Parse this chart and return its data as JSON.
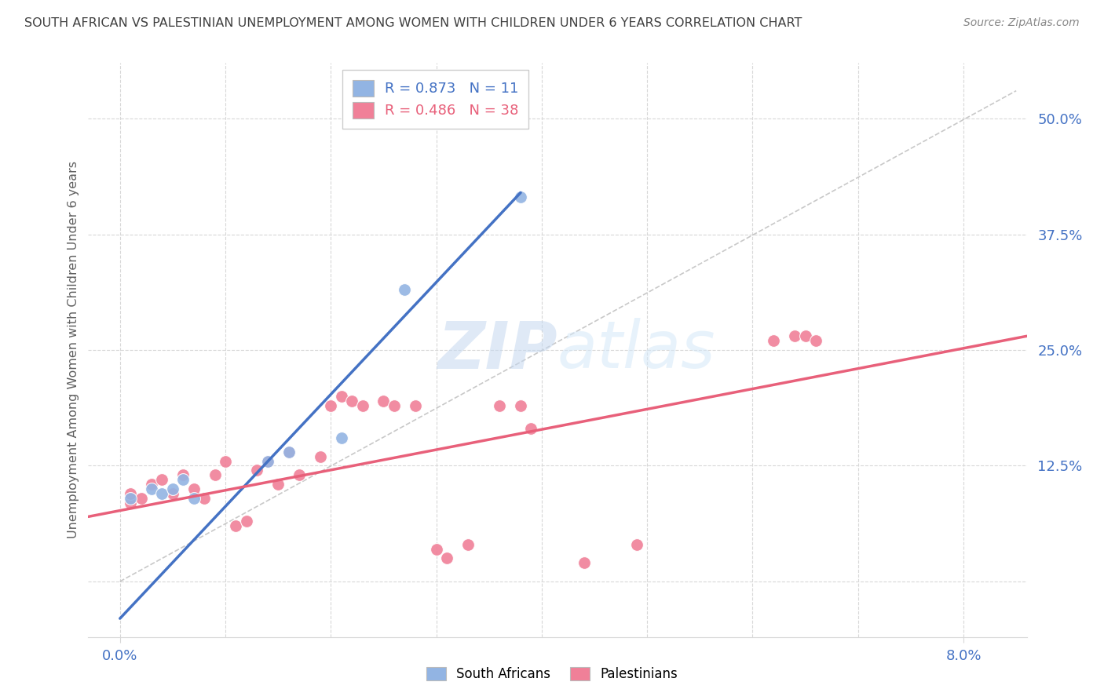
{
  "title": "SOUTH AFRICAN VS PALESTINIAN UNEMPLOYMENT AMONG WOMEN WITH CHILDREN UNDER 6 YEARS CORRELATION CHART",
  "source": "Source: ZipAtlas.com",
  "ylabel": "Unemployment Among Women with Children Under 6 years",
  "y_ticks": [
    0.0,
    0.125,
    0.25,
    0.375,
    0.5
  ],
  "y_tick_labels": [
    "",
    "12.5%",
    "25.0%",
    "37.5%",
    "50.0%"
  ],
  "y_min": -0.06,
  "y_max": 0.56,
  "x_min": -0.003,
  "x_max": 0.086,
  "sa_color": "#92b4e3",
  "pal_color": "#f08098",
  "sa_line_color": "#4472c4",
  "pal_line_color": "#e8607a",
  "ref_line_color": "#bbbbbb",
  "grid_color": "#d8d8d8",
  "sa_R": 0.873,
  "sa_N": 11,
  "pal_R": 0.486,
  "pal_N": 38,
  "sa_points_x": [
    0.001,
    0.003,
    0.004,
    0.005,
    0.006,
    0.007,
    0.014,
    0.016,
    0.021,
    0.027,
    0.038
  ],
  "sa_points_y": [
    0.09,
    0.1,
    0.095,
    0.1,
    0.11,
    0.09,
    0.13,
    0.14,
    0.155,
    0.315,
    0.415
  ],
  "pal_points_x": [
    0.001,
    0.001,
    0.002,
    0.003,
    0.004,
    0.005,
    0.006,
    0.007,
    0.008,
    0.009,
    0.01,
    0.011,
    0.012,
    0.013,
    0.014,
    0.015,
    0.016,
    0.017,
    0.019,
    0.02,
    0.021,
    0.022,
    0.023,
    0.025,
    0.026,
    0.028,
    0.03,
    0.031,
    0.033,
    0.036,
    0.038,
    0.039,
    0.044,
    0.049,
    0.062,
    0.064,
    0.065,
    0.066
  ],
  "pal_points_y": [
    0.085,
    0.095,
    0.09,
    0.105,
    0.11,
    0.095,
    0.115,
    0.1,
    0.09,
    0.115,
    0.13,
    0.06,
    0.065,
    0.12,
    0.13,
    0.105,
    0.14,
    0.115,
    0.135,
    0.19,
    0.2,
    0.195,
    0.19,
    0.195,
    0.19,
    0.19,
    0.035,
    0.025,
    0.04,
    0.19,
    0.19,
    0.165,
    0.02,
    0.04,
    0.26,
    0.265,
    0.265,
    0.26
  ],
  "sa_line_x": [
    0.0,
    0.038
  ],
  "sa_line_y": [
    -0.04,
    0.42
  ],
  "pal_line_x": [
    -0.003,
    0.086
  ],
  "pal_line_y": [
    0.07,
    0.265
  ],
  "bg_color": "#ffffff",
  "text_color": "#4472c4",
  "title_color": "#404040",
  "marker_size": 130,
  "legend_label_sa": "South Africans",
  "legend_label_pal": "Palestinians"
}
